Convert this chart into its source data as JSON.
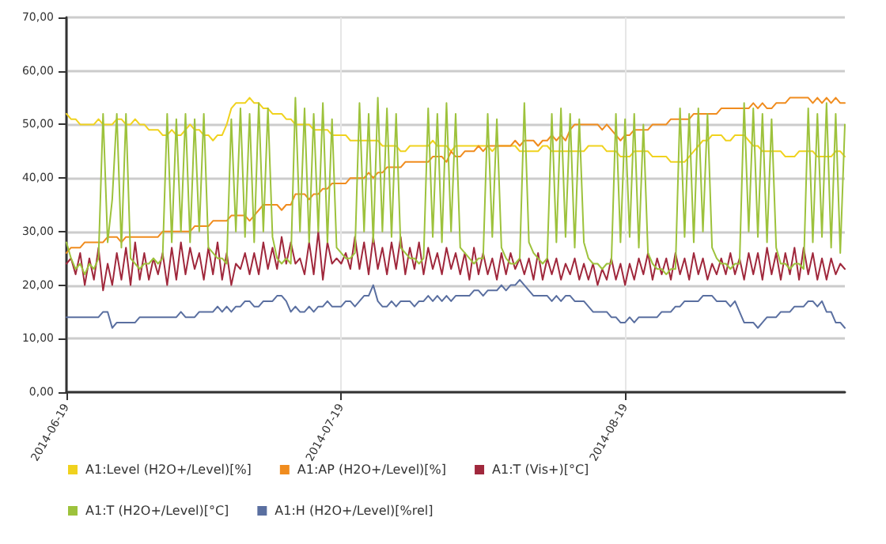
{
  "chart_data": {
    "type": "line",
    "grid": true,
    "legend": "bottom",
    "marker": "none",
    "line_style": "solid",
    "xlim": [
      "2014-06-19",
      "2014-09-12"
    ],
    "xticks": [
      "2014-06-19",
      "2014-07-19",
      "2014-08-19"
    ],
    "ylim": [
      0,
      70
    ],
    "yticks": [
      {
        "value": 0,
        "label": "0,00"
      },
      {
        "value": 10,
        "label": "10,00"
      },
      {
        "value": 20,
        "label": "20,00"
      },
      {
        "value": 30,
        "label": "30,00"
      },
      {
        "value": 40,
        "label": "40,00"
      },
      {
        "value": 50,
        "label": "50,00"
      },
      {
        "value": 60,
        "label": "60,00"
      },
      {
        "value": 70,
        "label": "70,00"
      }
    ],
    "x": [
      "2014-06-19T00:00",
      "2014-06-19T12:00",
      "2014-06-20T00:00",
      "2014-06-20T12:00",
      "2014-06-21T00:00",
      "2014-06-21T12:00",
      "2014-06-22T00:00",
      "2014-06-22T12:00",
      "2014-06-23T00:00",
      "2014-06-23T12:00",
      "2014-06-24T00:00",
      "2014-06-24T12:00",
      "2014-06-25T00:00",
      "2014-06-25T12:00",
      "2014-06-26T00:00",
      "2014-06-26T12:00",
      "2014-06-27T00:00",
      "2014-06-27T12:00",
      "2014-06-28T00:00",
      "2014-06-28T12:00",
      "2014-06-29T00:00",
      "2014-06-29T12:00",
      "2014-06-30T00:00",
      "2014-06-30T12:00",
      "2014-07-01T00:00",
      "2014-07-01T12:00",
      "2014-07-02T00:00",
      "2014-07-02T12:00",
      "2014-07-03T00:00",
      "2014-07-03T12:00",
      "2014-07-04T00:00",
      "2014-07-04T12:00",
      "2014-07-05T00:00",
      "2014-07-05T12:00",
      "2014-07-06T00:00",
      "2014-07-06T12:00",
      "2014-07-07T00:00",
      "2014-07-07T12:00",
      "2014-07-08T00:00",
      "2014-07-08T12:00",
      "2014-07-09T00:00",
      "2014-07-09T12:00",
      "2014-07-10T00:00",
      "2014-07-10T12:00",
      "2014-07-11T00:00",
      "2014-07-11T12:00",
      "2014-07-12T00:00",
      "2014-07-12T12:00",
      "2014-07-13T00:00",
      "2014-07-13T12:00",
      "2014-07-14T00:00",
      "2014-07-14T12:00",
      "2014-07-15T00:00",
      "2014-07-15T12:00",
      "2014-07-16T00:00",
      "2014-07-16T12:00",
      "2014-07-17T00:00",
      "2014-07-17T12:00",
      "2014-07-18T00:00",
      "2014-07-18T12:00",
      "2014-07-19T00:00",
      "2014-07-19T12:00",
      "2014-07-20T00:00",
      "2014-07-20T12:00",
      "2014-07-21T00:00",
      "2014-07-21T12:00",
      "2014-07-22T00:00",
      "2014-07-22T12:00",
      "2014-07-23T00:00",
      "2014-07-23T12:00",
      "2014-07-24T00:00",
      "2014-07-24T12:00",
      "2014-07-25T00:00",
      "2014-07-25T12:00",
      "2014-07-26T00:00",
      "2014-07-26T12:00",
      "2014-07-27T00:00",
      "2014-07-27T12:00",
      "2014-07-28T00:00",
      "2014-07-28T12:00",
      "2014-07-29T00:00",
      "2014-07-29T12:00",
      "2014-07-30T00:00",
      "2014-07-30T12:00",
      "2014-07-31T00:00",
      "2014-07-31T12:00",
      "2014-08-01T00:00",
      "2014-08-01T12:00",
      "2014-08-02T00:00",
      "2014-08-02T12:00",
      "2014-08-03T00:00",
      "2014-08-03T12:00",
      "2014-08-04T00:00",
      "2014-08-04T12:00",
      "2014-08-05T00:00",
      "2014-08-05T12:00",
      "2014-08-06T00:00",
      "2014-08-06T12:00",
      "2014-08-07T00:00",
      "2014-08-07T12:00",
      "2014-08-08T00:00",
      "2014-08-08T12:00",
      "2014-08-09T00:00",
      "2014-08-09T12:00",
      "2014-08-10T00:00",
      "2014-08-10T12:00",
      "2014-08-11T00:00",
      "2014-08-11T12:00",
      "2014-08-12T00:00",
      "2014-08-12T12:00",
      "2014-08-13T00:00",
      "2014-08-13T12:00",
      "2014-08-14T00:00",
      "2014-08-14T12:00",
      "2014-08-15T00:00",
      "2014-08-15T12:00",
      "2014-08-16T00:00",
      "2014-08-16T12:00",
      "2014-08-17T00:00",
      "2014-08-17T12:00",
      "2014-08-18T00:00",
      "2014-08-18T12:00",
      "2014-08-19T00:00",
      "2014-08-19T12:00",
      "2014-08-20T00:00",
      "2014-08-20T12:00",
      "2014-08-21T00:00",
      "2014-08-21T12:00",
      "2014-08-22T00:00",
      "2014-08-22T12:00",
      "2014-08-23T00:00",
      "2014-08-23T12:00",
      "2014-08-24T00:00",
      "2014-08-24T12:00",
      "2014-08-25T00:00",
      "2014-08-25T12:00",
      "2014-08-26T00:00",
      "2014-08-26T12:00",
      "2014-08-27T00:00",
      "2014-08-27T12:00",
      "2014-08-28T00:00",
      "2014-08-28T12:00",
      "2014-08-29T00:00",
      "2014-08-29T12:00",
      "2014-08-30T00:00",
      "2014-08-30T12:00",
      "2014-08-31T00:00",
      "2014-08-31T12:00",
      "2014-09-01T00:00",
      "2014-09-01T12:00",
      "2014-09-02T00:00",
      "2014-09-02T12:00",
      "2014-09-03T00:00",
      "2014-09-03T12:00",
      "2014-09-04T00:00",
      "2014-09-04T12:00",
      "2014-09-05T00:00",
      "2014-09-05T12:00",
      "2014-09-06T00:00",
      "2014-09-06T12:00",
      "2014-09-07T00:00",
      "2014-09-07T12:00",
      "2014-09-08T00:00",
      "2014-09-08T12:00",
      "2014-09-09T00:00",
      "2014-09-09T12:00",
      "2014-09-10T00:00",
      "2014-09-10T12:00",
      "2014-09-11T00:00",
      "2014-09-11T12:00",
      "2014-09-12T00:00"
    ],
    "series": [
      {
        "name": "A1:Level (H2O+/Level)[%]",
        "color": "#f0d21e",
        "values": [
          52,
          51,
          51,
          50,
          50,
          50,
          50,
          51,
          50,
          50,
          50,
          51,
          51,
          50,
          50,
          51,
          50,
          50,
          49,
          49,
          49,
          48,
          48,
          49,
          48,
          48,
          49,
          50,
          49,
          49,
          48,
          48,
          47,
          48,
          48,
          50,
          53,
          54,
          54,
          54,
          55,
          54,
          54,
          53,
          53,
          52,
          52,
          52,
          51,
          51,
          50,
          50,
          50,
          50,
          49,
          49,
          49,
          49,
          48,
          48,
          48,
          48,
          47,
          47,
          47,
          47,
          47,
          47,
          47,
          46,
          46,
          46,
          46,
          45,
          45,
          46,
          46,
          46,
          46,
          46,
          47,
          46,
          46,
          46,
          45,
          46,
          46,
          46,
          46,
          46,
          46,
          46,
          46,
          45,
          46,
          46,
          46,
          46,
          46,
          45,
          45,
          45,
          45,
          45,
          46,
          46,
          45,
          45,
          45,
          45,
          45,
          45,
          45,
          45,
          46,
          46,
          46,
          46,
          45,
          45,
          45,
          44,
          44,
          44,
          45,
          45,
          45,
          45,
          44,
          44,
          44,
          44,
          43,
          43,
          43,
          43,
          44,
          45,
          46,
          47,
          47,
          48,
          48,
          48,
          47,
          47,
          48,
          48,
          48,
          47,
          46,
          46,
          45,
          45,
          45,
          45,
          45,
          44,
          44,
          44,
          45,
          45,
          45,
          45,
          44,
          44,
          44,
          44,
          45,
          45,
          44
        ]
      },
      {
        "name": "A1:AP (H2O+/Level)[%]",
        "color": "#f08c1e",
        "values": [
          26,
          27,
          27,
          27,
          28,
          28,
          28,
          28,
          28,
          29,
          29,
          29,
          28,
          29,
          29,
          29,
          29,
          29,
          29,
          29,
          29,
          30,
          30,
          30,
          30,
          30,
          30,
          30,
          31,
          31,
          31,
          31,
          32,
          32,
          32,
          32,
          33,
          33,
          33,
          33,
          32,
          33,
          34,
          35,
          35,
          35,
          35,
          34,
          35,
          35,
          37,
          37,
          37,
          36,
          37,
          37,
          38,
          38,
          39,
          39,
          39,
          39,
          40,
          40,
          40,
          40,
          41,
          40,
          41,
          41,
          42,
          42,
          42,
          42,
          43,
          43,
          43,
          43,
          43,
          43,
          44,
          44,
          44,
          43,
          45,
          44,
          44,
          45,
          45,
          45,
          46,
          45,
          46,
          46,
          46,
          46,
          46,
          46,
          47,
          46,
          47,
          47,
          47,
          46,
          47,
          47,
          48,
          47,
          48,
          47,
          49,
          50,
          50,
          50,
          50,
          50,
          50,
          49,
          50,
          49,
          48,
          47,
          48,
          48,
          49,
          49,
          49,
          49,
          50,
          50,
          50,
          50,
          51,
          51,
          51,
          51,
          51,
          52,
          52,
          52,
          52,
          52,
          52,
          53,
          53,
          53,
          53,
          53,
          53,
          53,
          54,
          53,
          54,
          53,
          53,
          54,
          54,
          54,
          55,
          55,
          55,
          55,
          55,
          54,
          55,
          54,
          55,
          54,
          55,
          54,
          54
        ]
      },
      {
        "name": "A1:T (Vis+)[°C]",
        "color": "#a0283c",
        "values": [
          24,
          25,
          22,
          26,
          20,
          25,
          21,
          27,
          19,
          24,
          20,
          26,
          21,
          27,
          20,
          28,
          21,
          26,
          21,
          25,
          22,
          26,
          20,
          27,
          21,
          28,
          22,
          27,
          23,
          26,
          21,
          27,
          22,
          28,
          21,
          26,
          20,
          24,
          23,
          26,
          22,
          26,
          22,
          28,
          23,
          27,
          23,
          29,
          24,
          28,
          24,
          25,
          22,
          28,
          22,
          30,
          21,
          28,
          24,
          25,
          24,
          26,
          23,
          29,
          23,
          28,
          22,
          29,
          23,
          27,
          22,
          28,
          23,
          29,
          22,
          27,
          23,
          28,
          22,
          27,
          23,
          26,
          22,
          27,
          23,
          26,
          22,
          26,
          21,
          27,
          22,
          26,
          22,
          25,
          21,
          26,
          22,
          26,
          23,
          25,
          22,
          25,
          21,
          26,
          21,
          25,
          22,
          25,
          21,
          24,
          22,
          25,
          21,
          24,
          21,
          24,
          20,
          23,
          21,
          25,
          21,
          24,
          20,
          24,
          21,
          25,
          22,
          26,
          21,
          25,
          22,
          25,
          21,
          26,
          22,
          25,
          21,
          26,
          22,
          25,
          21,
          24,
          22,
          25,
          22,
          26,
          22,
          25,
          21,
          26,
          22,
          26,
          21,
          27,
          22,
          26,
          21,
          26,
          22,
          27,
          21,
          27,
          22,
          26,
          21,
          25,
          21,
          25,
          22,
          24,
          23
        ]
      },
      {
        "name": "A1:T (H2O+/Level)[°C]",
        "color": "#9dc23c",
        "values": [
          28,
          25,
          23,
          24,
          22,
          24,
          23,
          25,
          52,
          28,
          36,
          52,
          27,
          52,
          25,
          24,
          23,
          24,
          24,
          25,
          24,
          25,
          52,
          28,
          51,
          30,
          52,
          28,
          51,
          30,
          52,
          27,
          26,
          25,
          25,
          24,
          51,
          30,
          53,
          29,
          52,
          28,
          54,
          30,
          53,
          29,
          25,
          24,
          25,
          24,
          55,
          30,
          53,
          28,
          52,
          30,
          54,
          28,
          51,
          27,
          26,
          25,
          25,
          26,
          54,
          30,
          52,
          28,
          55,
          30,
          53,
          29,
          52,
          27,
          26,
          25,
          25,
          24,
          25,
          53,
          29,
          52,
          28,
          54,
          30,
          52,
          27,
          26,
          25,
          24,
          25,
          25,
          52,
          29,
          51,
          27,
          25,
          24,
          24,
          25,
          54,
          28,
          26,
          25,
          24,
          25,
          52,
          28,
          53,
          29,
          52,
          27,
          51,
          28,
          25,
          24,
          24,
          23,
          24,
          24,
          52,
          28,
          51,
          29,
          52,
          27,
          50,
          26,
          24,
          23,
          23,
          22,
          23,
          23,
          53,
          29,
          52,
          28,
          53,
          30,
          52,
          27,
          25,
          24,
          24,
          23,
          24,
          24,
          54,
          30,
          53,
          29,
          52,
          28,
          51,
          27,
          24,
          24,
          23,
          24,
          24,
          23,
          53,
          28,
          52,
          29,
          54,
          27,
          52,
          26,
          50
        ]
      },
      {
        "name": "A1:H (H2O+/Level)[%rel]",
        "color": "#5a6fa0",
        "values": [
          14,
          14,
          14,
          14,
          14,
          14,
          14,
          14,
          15,
          15,
          12,
          13,
          13,
          13,
          13,
          13,
          14,
          14,
          14,
          14,
          14,
          14,
          14,
          14,
          14,
          15,
          14,
          14,
          14,
          15,
          15,
          15,
          15,
          16,
          15,
          16,
          15,
          16,
          16,
          17,
          17,
          16,
          16,
          17,
          17,
          17,
          18,
          18,
          17,
          15,
          16,
          15,
          15,
          16,
          15,
          16,
          16,
          17,
          16,
          16,
          16,
          17,
          17,
          16,
          17,
          18,
          18,
          20,
          17,
          16,
          16,
          17,
          16,
          17,
          17,
          17,
          16,
          17,
          17,
          18,
          17,
          18,
          17,
          18,
          17,
          18,
          18,
          18,
          18,
          19,
          19,
          18,
          19,
          19,
          19,
          20,
          19,
          20,
          20,
          21,
          20,
          19,
          18,
          18,
          18,
          18,
          17,
          18,
          17,
          18,
          18,
          17,
          17,
          17,
          16,
          15,
          15,
          15,
          15,
          14,
          14,
          13,
          13,
          14,
          13,
          14,
          14,
          14,
          14,
          14,
          15,
          15,
          15,
          16,
          16,
          17,
          17,
          17,
          17,
          18,
          18,
          18,
          17,
          17,
          17,
          16,
          17,
          15,
          13,
          13,
          13,
          12,
          13,
          14,
          14,
          14,
          15,
          15,
          15,
          16,
          16,
          16,
          17,
          17,
          16,
          17,
          15,
          15,
          13,
          13,
          12
        ]
      }
    ]
  }
}
